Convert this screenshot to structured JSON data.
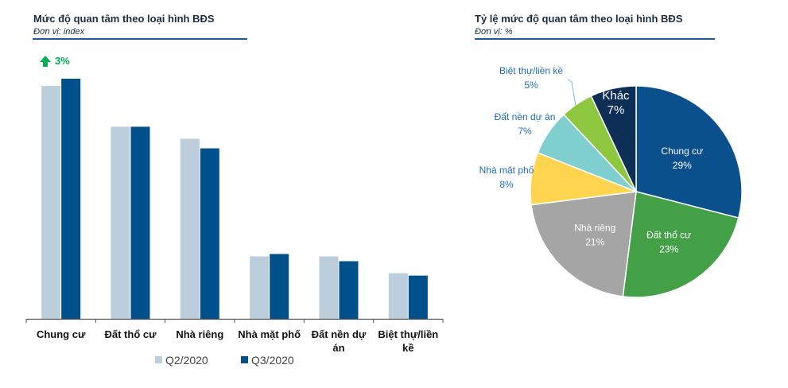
{
  "left_chart": {
    "title": "Mức độ quan tâm theo loại hình BĐS",
    "unit": "Đơn vị: index",
    "annotation": "3%",
    "annotation_color": "#00b050"
  },
  "right_chart": {
    "title": "Tỷ lệ mức độ quan tâm theo loại hình BĐS",
    "unit": "Đơn vị: %"
  },
  "chart_data": [
    {
      "type": "bar",
      "title": "Mức độ quan tâm theo loại hình BĐS",
      "ylabel": "index",
      "xlabel": "",
      "categories": [
        [
          "Chung cư"
        ],
        [
          "Đất thổ cư"
        ],
        [
          "Nhà riêng"
        ],
        [
          "Nhà mặt phố"
        ],
        [
          "Đất nền dự",
          "án"
        ],
        [
          "Biệt thự/liền",
          "kề"
        ]
      ],
      "series": [
        {
          "name": "Q2/2020",
          "color": "#bccddc",
          "values": [
            97,
            80,
            75,
            26,
            26,
            19
          ]
        },
        {
          "name": "Q3/2020",
          "color": "#00508c",
          "values": [
            100,
            80,
            71,
            27,
            24,
            18
          ]
        }
      ],
      "ylim": [
        0,
        100
      ],
      "grid": false,
      "legend": "bottom",
      "annotations": [
        {
          "text": "3%",
          "category": "Chung cư",
          "icon": "up-arrow-icon"
        }
      ]
    },
    {
      "type": "pie",
      "title": "Tỷ lệ mức độ quan tâm theo loại hình BĐS",
      "unit": "%",
      "slices": [
        {
          "label": "Chung cư",
          "value": 29,
          "color": "#0a508c",
          "text_color": "#ffffff"
        },
        {
          "label": "Đất thổ cư",
          "value": 23,
          "color": "#43a047",
          "text_color": "#ffffff"
        },
        {
          "label": "Nhà riêng",
          "value": 21,
          "color": "#a5a5a5",
          "text_color": "#ffffff"
        },
        {
          "label": "Nhà mặt phố",
          "value": 8,
          "color": "#ffd54f",
          "text_color": "#1f6fb5"
        },
        {
          "label": "Đất nền dự án",
          "value": 7,
          "color": "#80cfcf",
          "text_color": "#1f6fb5"
        },
        {
          "label": "Biệt thự/liền kề",
          "value": 5,
          "color": "#8dc63f",
          "text_color": "#1f6fb5"
        },
        {
          "label": "Khác",
          "value": 7,
          "color": "#0d2f55",
          "text_color": "#ffffff"
        }
      ]
    }
  ]
}
